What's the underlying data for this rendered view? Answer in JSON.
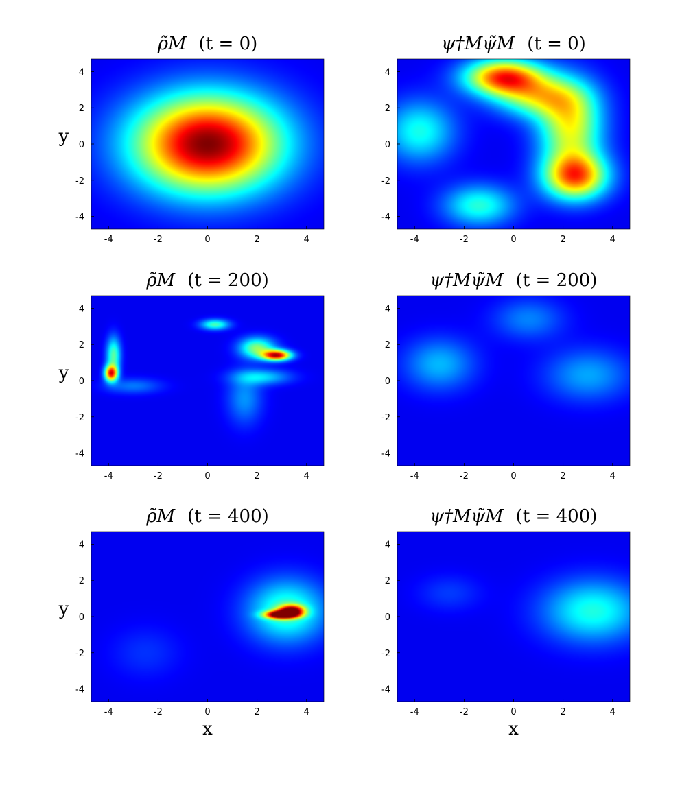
{
  "chart_data": {
    "type": "heatmap",
    "colormap": "jet",
    "xlabel": "x",
    "ylabel": "y",
    "xticks": [
      "-4",
      "-2",
      "0",
      "2",
      "4"
    ],
    "yticks": [
      "4",
      "2",
      "0",
      "-2",
      "-4"
    ],
    "xlim": [
      -4.7,
      4.7
    ],
    "ylim": [
      -4.7,
      4.7
    ],
    "panels": [
      {
        "id": "rho_t0",
        "title_var": "ρ̃M",
        "title_time": "(t = 0)",
        "blobs": [
          {
            "x": 0,
            "y": 0,
            "sx": 2.1,
            "sy": 1.9,
            "amp": 1.0
          }
        ]
      },
      {
        "id": "psi_t0",
        "title_var": "ψ†Mψ̃M",
        "title_time": "(t = 0)",
        "blobs": [
          {
            "x": -0.4,
            "y": 3.7,
            "sx": 1.1,
            "sy": 0.7,
            "amp": 0.78
          },
          {
            "x": 2.5,
            "y": -1.8,
            "sx": 0.9,
            "sy": 0.9,
            "amp": 0.72
          },
          {
            "x": 2.3,
            "y": 1.0,
            "sx": 0.9,
            "sy": 1.6,
            "amp": 0.55
          },
          {
            "x": 1.0,
            "y": 2.6,
            "sx": 1.2,
            "sy": 0.8,
            "amp": 0.45
          },
          {
            "x": -3.8,
            "y": 0.7,
            "sx": 1.0,
            "sy": 1.2,
            "amp": 0.32
          },
          {
            "x": -1.4,
            "y": -3.4,
            "sx": 1.0,
            "sy": 0.8,
            "amp": 0.34
          }
        ]
      },
      {
        "id": "rho_t200",
        "title_var": "ρ̃M",
        "title_time": "(t = 200)",
        "blobs": [
          {
            "x": -3.9,
            "y": 0.4,
            "sx": 0.18,
            "sy": 0.3,
            "amp": 0.78
          },
          {
            "x": -3.8,
            "y": 1.4,
            "sx": 0.2,
            "sy": 0.7,
            "amp": 0.4
          },
          {
            "x": 2.8,
            "y": 1.4,
            "sx": 0.4,
            "sy": 0.2,
            "amp": 0.9
          },
          {
            "x": 2.0,
            "y": 1.8,
            "sx": 0.5,
            "sy": 0.4,
            "amp": 0.45
          },
          {
            "x": 0.3,
            "y": 3.1,
            "sx": 0.4,
            "sy": 0.2,
            "amp": 0.38
          },
          {
            "x": 2.2,
            "y": 0.2,
            "sx": 0.8,
            "sy": 0.3,
            "amp": 0.25
          },
          {
            "x": 1.5,
            "y": -1.0,
            "sx": 0.5,
            "sy": 1.0,
            "amp": 0.18
          },
          {
            "x": -3.0,
            "y": -0.3,
            "sx": 0.8,
            "sy": 0.3,
            "amp": 0.15
          }
        ]
      },
      {
        "id": "psi_t200",
        "title_var": "ψ†Mψ̃M",
        "title_time": "(t = 200)",
        "blobs": [
          {
            "x": -3.0,
            "y": 0.9,
            "sx": 1.0,
            "sy": 1.0,
            "amp": 0.22
          },
          {
            "x": 3.0,
            "y": 0.3,
            "sx": 1.2,
            "sy": 1.0,
            "amp": 0.2
          },
          {
            "x": 0.6,
            "y": 3.4,
            "sx": 1.0,
            "sy": 0.8,
            "amp": 0.16
          }
        ]
      },
      {
        "id": "rho_t400",
        "title_var": "ρ̃M",
        "title_time": "(t = 400)",
        "blobs": [
          {
            "x": 3.0,
            "y": 0.1,
            "sx": 0.45,
            "sy": 0.15,
            "amp": 1.0
          },
          {
            "x": 3.4,
            "y": 0.35,
            "sx": 0.35,
            "sy": 0.2,
            "amp": 0.75
          },
          {
            "x": 3.2,
            "y": 0.3,
            "sx": 1.1,
            "sy": 1.2,
            "amp": 0.38
          },
          {
            "x": -2.5,
            "y": -2.0,
            "sx": 1.0,
            "sy": 1.0,
            "amp": 0.07
          }
        ]
      },
      {
        "id": "psi_t400",
        "title_var": "ψ†Mψ̃M",
        "title_time": "(t = 400)",
        "blobs": [
          {
            "x": 3.2,
            "y": 0.3,
            "sx": 1.4,
            "sy": 1.2,
            "amp": 0.33
          },
          {
            "x": -2.6,
            "y": 1.3,
            "sx": 0.9,
            "sy": 0.7,
            "amp": 0.08
          }
        ]
      }
    ]
  }
}
